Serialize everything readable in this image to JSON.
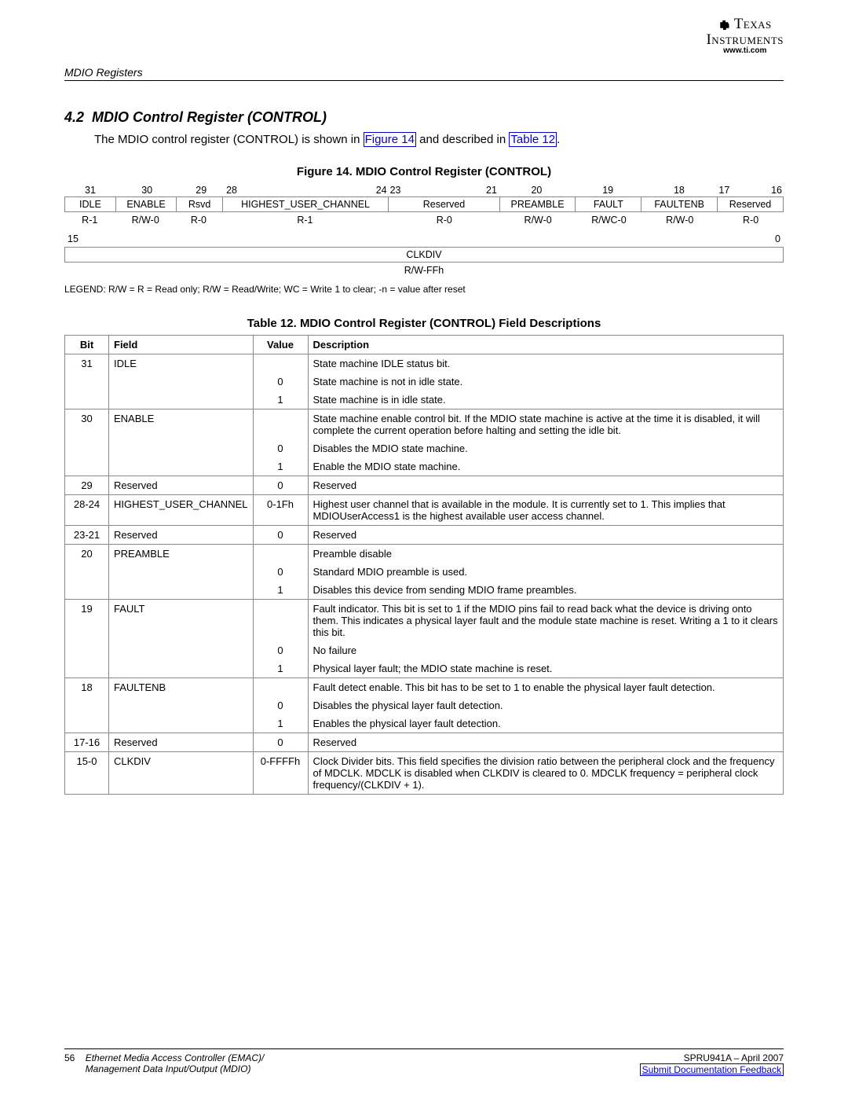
{
  "logo": {
    "brand_line1": "Texas",
    "brand_line2": "Instruments",
    "url": "www.ti.com"
  },
  "running_head": "MDIO Registers",
  "section": {
    "number": "4.2",
    "title": "MDIO Control Register (CONTROL)"
  },
  "intro": {
    "pre": "The MDIO control register (CONTROL) is shown in ",
    "link1": "Figure 14",
    "mid": " and described in ",
    "link2": "Table 12",
    "post": "."
  },
  "figure": {
    "caption": "Figure 14. MDIO Control Register (CONTROL)",
    "row1": {
      "bits": [
        "31",
        "30",
        "29",
        "28",
        "24",
        "23",
        "21",
        "20",
        "19",
        "18",
        "17",
        "16"
      ],
      "cells": [
        {
          "flex": 1,
          "label": "IDLE",
          "rw": "R-1"
        },
        {
          "flex": 1.2,
          "label": "ENABLE",
          "rw": "R/W-0"
        },
        {
          "flex": 0.9,
          "label": "Rsvd",
          "rw": "R-0"
        },
        {
          "flex": 3.3,
          "label": "HIGHEST_USER_CHANNEL",
          "rw": "R-1"
        },
        {
          "flex": 2.2,
          "label": "Reserved",
          "rw": "R-0"
        },
        {
          "flex": 1.5,
          "label": "PREAMBLE",
          "rw": "R/W-0"
        },
        {
          "flex": 1.3,
          "label": "FAULT",
          "rw": "R/WC-0"
        },
        {
          "flex": 1.5,
          "label": "FAULTENB",
          "rw": "R/W-0"
        },
        {
          "flex": 1.3,
          "label": "Reserved",
          "rw": "R-0"
        }
      ]
    },
    "row2": {
      "bit_left": "15",
      "bit_right": "0",
      "cells": [
        {
          "flex": 1,
          "label": "CLKDIV",
          "rw": "R/W-FFh"
        }
      ]
    },
    "legend": "LEGEND: R/W = R = Read only; R/W = Read/Write; WC = Write 1 to clear; -n = value after reset"
  },
  "table": {
    "caption": "Table 12. MDIO Control Register (CONTROL) Field Descriptions",
    "headers": [
      "Bit",
      "Field",
      "Value",
      "Description"
    ],
    "rows": [
      {
        "bit": "31",
        "field": "IDLE",
        "val": "",
        "desc": "State machine IDLE status bit.",
        "top": true
      },
      {
        "bit": "",
        "field": "",
        "val": "0",
        "desc": "State machine is not in idle state."
      },
      {
        "bit": "",
        "field": "",
        "val": "1",
        "desc": "State machine is in idle state.",
        "bot": true
      },
      {
        "bit": "30",
        "field": "ENABLE",
        "val": "",
        "desc": "State machine enable control bit. If the MDIO state machine is active at the time it is disabled, it will complete the current operation before halting and setting the idle bit.",
        "top": true
      },
      {
        "bit": "",
        "field": "",
        "val": "0",
        "desc": "Disables the MDIO state machine."
      },
      {
        "bit": "",
        "field": "",
        "val": "1",
        "desc": "Enable the MDIO state machine.",
        "bot": true
      },
      {
        "bit": "29",
        "field": "Reserved",
        "val": "0",
        "desc": "Reserved",
        "single": true
      },
      {
        "bit": "28-24",
        "field": "HIGHEST_USER_CHANNEL",
        "val": "0-1Fh",
        "desc": "Highest user channel that is available in the module. It is currently set to 1. This implies that MDIOUserAccess1 is the highest available user access channel.",
        "single": true
      },
      {
        "bit": "23-21",
        "field": "Reserved",
        "val": "0",
        "desc": "Reserved",
        "single": true
      },
      {
        "bit": "20",
        "field": "PREAMBLE",
        "val": "",
        "desc": "Preamble disable",
        "top": true
      },
      {
        "bit": "",
        "field": "",
        "val": "0",
        "desc": "Standard MDIO preamble is used."
      },
      {
        "bit": "",
        "field": "",
        "val": "1",
        "desc": "Disables this device from sending MDIO frame preambles.",
        "bot": true
      },
      {
        "bit": "19",
        "field": "FAULT",
        "val": "",
        "desc": "Fault indicator. This bit is set to 1 if the MDIO pins fail to read back what the device is driving onto them. This indicates a physical layer fault and the module state machine is reset. Writing a 1 to it clears this bit.",
        "top": true
      },
      {
        "bit": "",
        "field": "",
        "val": "0",
        "desc": "No failure"
      },
      {
        "bit": "",
        "field": "",
        "val": "1",
        "desc": "Physical layer fault; the MDIO state machine is reset.",
        "bot": true
      },
      {
        "bit": "18",
        "field": "FAULTENB",
        "val": "",
        "desc": "Fault detect enable. This bit has to be set to 1 to enable the physical layer fault detection.",
        "top": true
      },
      {
        "bit": "",
        "field": "",
        "val": "0",
        "desc": "Disables the physical layer fault detection."
      },
      {
        "bit": "",
        "field": "",
        "val": "1",
        "desc": "Enables the physical layer fault detection.",
        "bot": true
      },
      {
        "bit": "17-16",
        "field": "Reserved",
        "val": "0",
        "desc": "Reserved",
        "single": true
      },
      {
        "bit": "15-0",
        "field": "CLKDIV",
        "val": "0-FFFFh",
        "desc": "Clock Divider bits. This field specifies the division ratio between the peripheral clock and the frequency of MDCLK. MDCLK is disabled when CLKDIV is cleared to 0. MDCLK frequency = peripheral clock frequency/(CLKDIV + 1).",
        "single": true
      }
    ]
  },
  "footer": {
    "page": "56",
    "title1": "Ethernet Media Access Controller (EMAC)/",
    "title2": "Management Data Input/Output (MDIO)",
    "docid": "SPRU941A – April 2007",
    "feedback": "Submit Documentation Feedback"
  },
  "colors": {
    "link": "#0000cc",
    "border": "#888888",
    "text": "#000000",
    "bg": "#ffffff"
  }
}
